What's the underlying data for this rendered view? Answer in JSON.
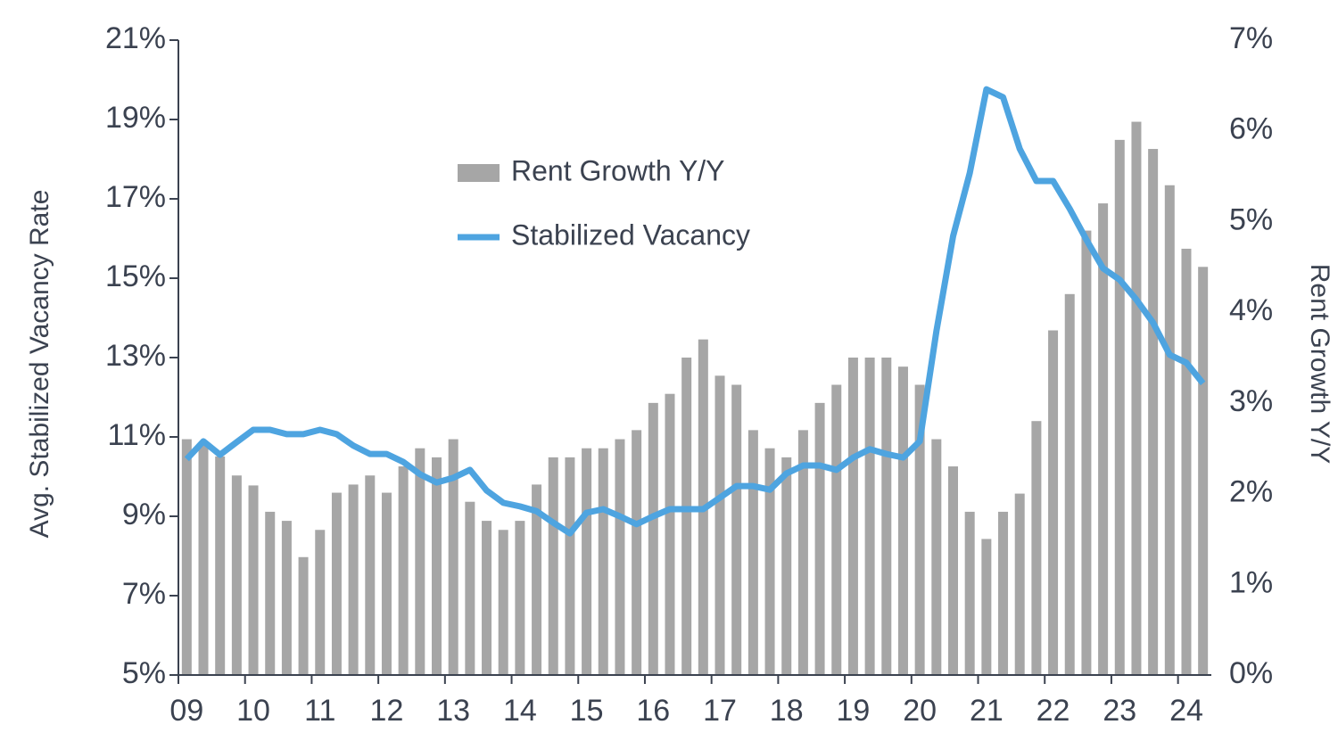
{
  "chart_data": {
    "type": "combo",
    "ylabel": "Avg. Stabilized Vacancy Rate",
    "y2label": "Rent Growth Y/Y",
    "categories": [
      "09",
      null,
      null,
      null,
      "10",
      null,
      null,
      null,
      "11",
      null,
      null,
      null,
      "12",
      null,
      null,
      null,
      "13",
      null,
      null,
      null,
      "14",
      null,
      null,
      null,
      "15",
      null,
      null,
      null,
      "16",
      null,
      null,
      null,
      "17",
      null,
      null,
      null,
      "18",
      null,
      null,
      null,
      "19",
      null,
      null,
      null,
      "20",
      null,
      null,
      null,
      "21",
      null,
      null,
      null,
      "22",
      null,
      null,
      null,
      "23",
      null,
      null,
      null,
      "24",
      null
    ],
    "ylim": [
      5,
      21
    ],
    "yticks": [
      {
        "value": 5,
        "label": "5%"
      },
      {
        "value": 7,
        "label": "7%"
      },
      {
        "value": 9,
        "label": "9%"
      },
      {
        "value": 11,
        "label": "11%"
      },
      {
        "value": 13,
        "label": "13%"
      },
      {
        "value": 15,
        "label": "15%"
      },
      {
        "value": 17,
        "label": "17%"
      },
      {
        "value": 19,
        "label": "19%"
      },
      {
        "value": 21,
        "label": "21%"
      }
    ],
    "y2lim": [
      0,
      7
    ],
    "y2ticks": [
      {
        "value": 0,
        "label": "0%"
      },
      {
        "value": 1,
        "label": "1%"
      },
      {
        "value": 2,
        "label": "2%"
      },
      {
        "value": 3,
        "label": "3%"
      },
      {
        "value": 4,
        "label": "4%"
      },
      {
        "value": 5,
        "label": "5%"
      },
      {
        "value": 6,
        "label": "6%"
      },
      {
        "value": 7,
        "label": "7%"
      }
    ],
    "series": [
      {
        "name": "Rent Growth Y/Y",
        "type": "bar",
        "axis": "y2",
        "color": "#a6a6a6",
        "values": [
          2.6,
          2.55,
          2.41,
          2.2,
          2.09,
          1.8,
          1.7,
          1.3,
          1.6,
          2.01,
          2.1,
          2.2,
          2.01,
          2.3,
          2.5,
          2.4,
          2.6,
          1.91,
          1.7,
          1.6,
          1.7,
          2.1,
          2.4,
          2.4,
          2.5,
          2.5,
          2.6,
          2.7,
          3.0,
          3.1,
          3.5,
          3.7,
          3.3,
          3.2,
          2.7,
          2.5,
          2.4,
          2.7,
          3.0,
          3.2,
          3.5,
          3.5,
          3.5,
          3.4,
          3.2,
          2.6,
          2.3,
          1.8,
          1.5,
          1.8,
          2.0,
          2.8,
          3.8,
          4.2,
          4.9,
          5.2,
          5.9,
          6.1,
          5.8,
          5.4,
          4.7,
          4.5
        ]
      },
      {
        "name": "Stabilized Vacancy",
        "type": "line",
        "axis": "y",
        "color": "#4ea4e0",
        "values": [
          10.44,
          10.89,
          10.55,
          10.87,
          11.18,
          11.18,
          11.07,
          11.07,
          11.18,
          11.07,
          10.78,
          10.57,
          10.57,
          10.37,
          10.06,
          9.85,
          9.97,
          10.17,
          9.65,
          9.34,
          9.25,
          9.13,
          8.84,
          8.57,
          9.09,
          9.18,
          9.0,
          8.8,
          9.0,
          9.18,
          9.18,
          9.18,
          9.47,
          9.76,
          9.76,
          9.67,
          10.08,
          10.28,
          10.28,
          10.17,
          10.48,
          10.69,
          10.57,
          10.48,
          10.89,
          13.67,
          16.06,
          17.65,
          19.76,
          19.56,
          18.26,
          17.45,
          17.45,
          16.75,
          15.97,
          15.25,
          14.96,
          14.46,
          13.88,
          13.07,
          12.87,
          12.35
        ]
      }
    ]
  }
}
